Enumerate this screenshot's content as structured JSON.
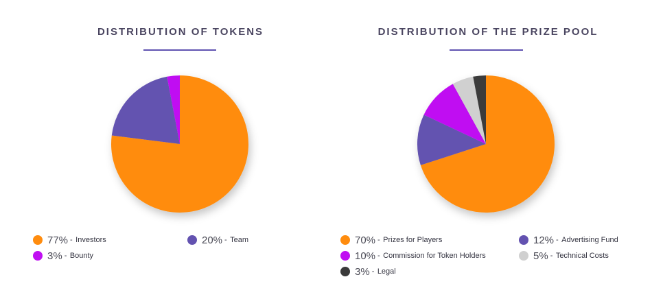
{
  "chart_data": [
    {
      "type": "pie",
      "title": "DISTRIBUTION OF TOKENS",
      "slices": [
        {
          "label": "Investors",
          "value": 77,
          "display": "77%",
          "color": "#ff8c0e"
        },
        {
          "label": "Team",
          "value": 20,
          "display": "20%",
          "color": "#6352b0"
        },
        {
          "label": "Bounty",
          "value": 3,
          "display": "3%",
          "color": "#c00ff2"
        }
      ]
    },
    {
      "type": "pie",
      "title": "DISTRIBUTION OF THE PRIZE POOL",
      "slices": [
        {
          "label": "Prizes for Players",
          "value": 70,
          "display": "70%",
          "color": "#ff8c0e"
        },
        {
          "label": "Advertising Fund",
          "value": 12,
          "display": "12%",
          "color": "#6352b0"
        },
        {
          "label": "Commission for Token Holders",
          "value": 10,
          "display": "10%",
          "color": "#c00ff2"
        },
        {
          "label": "Technical Costs",
          "value": 5,
          "display": "5%",
          "color": "#d0d0d0"
        },
        {
          "label": "Legal",
          "value": 3,
          "display": "3%",
          "color": "#3a3a3a"
        }
      ]
    }
  ],
  "legend_separator": "-"
}
